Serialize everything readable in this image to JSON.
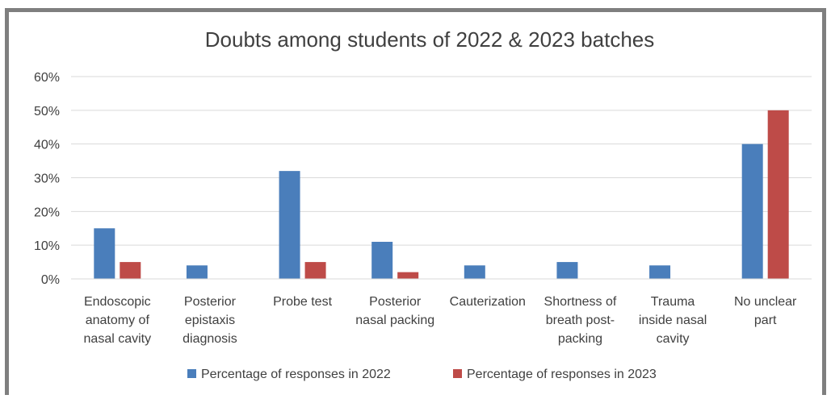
{
  "chart_data": {
    "type": "bar",
    "title": "Doubts among students of 2022 & 2023 batches",
    "categories": [
      [
        "Endoscopic",
        "anatomy of",
        "nasal cavity"
      ],
      [
        "Posterior",
        "epistaxis",
        "diagnosis"
      ],
      [
        "Probe test"
      ],
      [
        "Posterior",
        "nasal packing"
      ],
      [
        "Cauterization"
      ],
      [
        "Shortness of",
        "breath post-",
        "packing"
      ],
      [
        "Trauma",
        "inside nasal",
        "cavity"
      ],
      [
        "No unclear",
        "part"
      ]
    ],
    "series": [
      {
        "name": "Percentage of responses in 2022",
        "color": "#4a7ebb",
        "values": [
          15,
          4,
          32,
          11,
          4,
          5,
          4,
          40
        ]
      },
      {
        "name": "Percentage of responses in 2023",
        "color": "#be4b48",
        "values": [
          5,
          0,
          5,
          2,
          0,
          0,
          0,
          50
        ]
      }
    ],
    "yticks": [
      "0%",
      "10%",
      "20%",
      "30%",
      "40%",
      "50%",
      "60%"
    ],
    "ylim": [
      0,
      60
    ],
    "grid": true,
    "legend": "bottom"
  }
}
